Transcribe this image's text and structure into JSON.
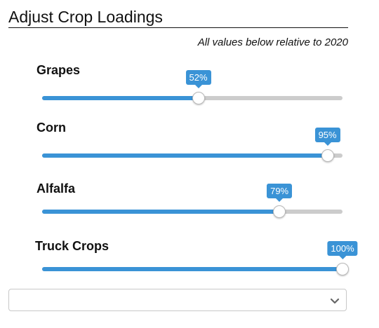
{
  "panel": {
    "title": "Adjust Crop Loadings",
    "note": "All values below relative to 2020"
  },
  "sliders": [
    {
      "label": "Grapes",
      "value": 52,
      "display": "52%"
    },
    {
      "label": "Corn",
      "value": 95,
      "display": "95%"
    },
    {
      "label": "Alfalfa",
      "value": 79,
      "display": "79%"
    },
    {
      "label": "Truck Crops",
      "value": 100,
      "display": "100%"
    }
  ],
  "dropdown": {
    "selected": ""
  },
  "colors": {
    "accent": "#3a93d6",
    "track": "#cccccc"
  },
  "icons": {
    "dropdown": "chevron-down-icon"
  }
}
